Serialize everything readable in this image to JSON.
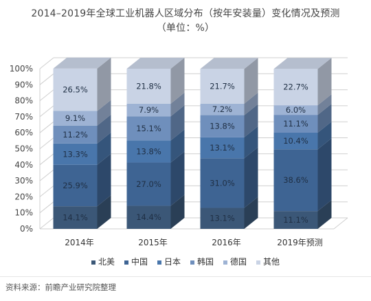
{
  "title_line1": "2014–2019年全球工业机器人区域分布（按年安装量）变化情况及预测",
  "title_line2": "（单位：%）",
  "source": "资料来源：前瞻产业研究院整理",
  "chart_data": {
    "type": "bar",
    "stacked": true,
    "three_d": true,
    "categories": [
      "2014年",
      "2015年",
      "2016年",
      "2019年预测"
    ],
    "ylim": [
      0,
      100
    ],
    "y_ticks": [
      "0%",
      "10%",
      "20%",
      "30%",
      "40%",
      "50%",
      "60%",
      "70%",
      "80%",
      "90%",
      "100%"
    ],
    "grid": true,
    "legend_position": "bottom",
    "series": [
      {
        "name": "北美",
        "color": "#3b5777",
        "values": [
          14.1,
          14.4,
          13.1,
          11.1
        ],
        "labels": [
          "14.1%",
          "14.4%",
          "13.1%",
          "11.1%"
        ]
      },
      {
        "name": "中国",
        "color": "#3e6493",
        "values": [
          25.9,
          27.0,
          31.0,
          38.6
        ],
        "labels": [
          "25.9%",
          "27.0%",
          "31.0%",
          "38.6%"
        ]
      },
      {
        "name": "日本",
        "color": "#4976ab",
        "values": [
          13.3,
          13.8,
          13.1,
          10.4
        ],
        "labels": [
          "13.3%",
          "13.8%",
          "13.1%",
          "10.4%"
        ]
      },
      {
        "name": "韩国",
        "color": "#6f8fbc",
        "values": [
          11.2,
          15.1,
          13.8,
          11.1
        ],
        "labels": [
          "11.2%",
          "15.1%",
          "13.8%",
          "11.1%"
        ]
      },
      {
        "name": "德国",
        "color": "#9eb3d4",
        "values": [
          9.1,
          7.9,
          7.2,
          6.0
        ],
        "labels": [
          "9.1%",
          "7.9%",
          "7.2%",
          "6.0%"
        ]
      },
      {
        "name": "其他",
        "color": "#c9d3e5",
        "values": [
          26.5,
          21.8,
          21.7,
          22.7
        ],
        "labels": [
          "26.5%",
          "21.8%",
          "21.7%",
          "22.7%"
        ]
      }
    ]
  }
}
